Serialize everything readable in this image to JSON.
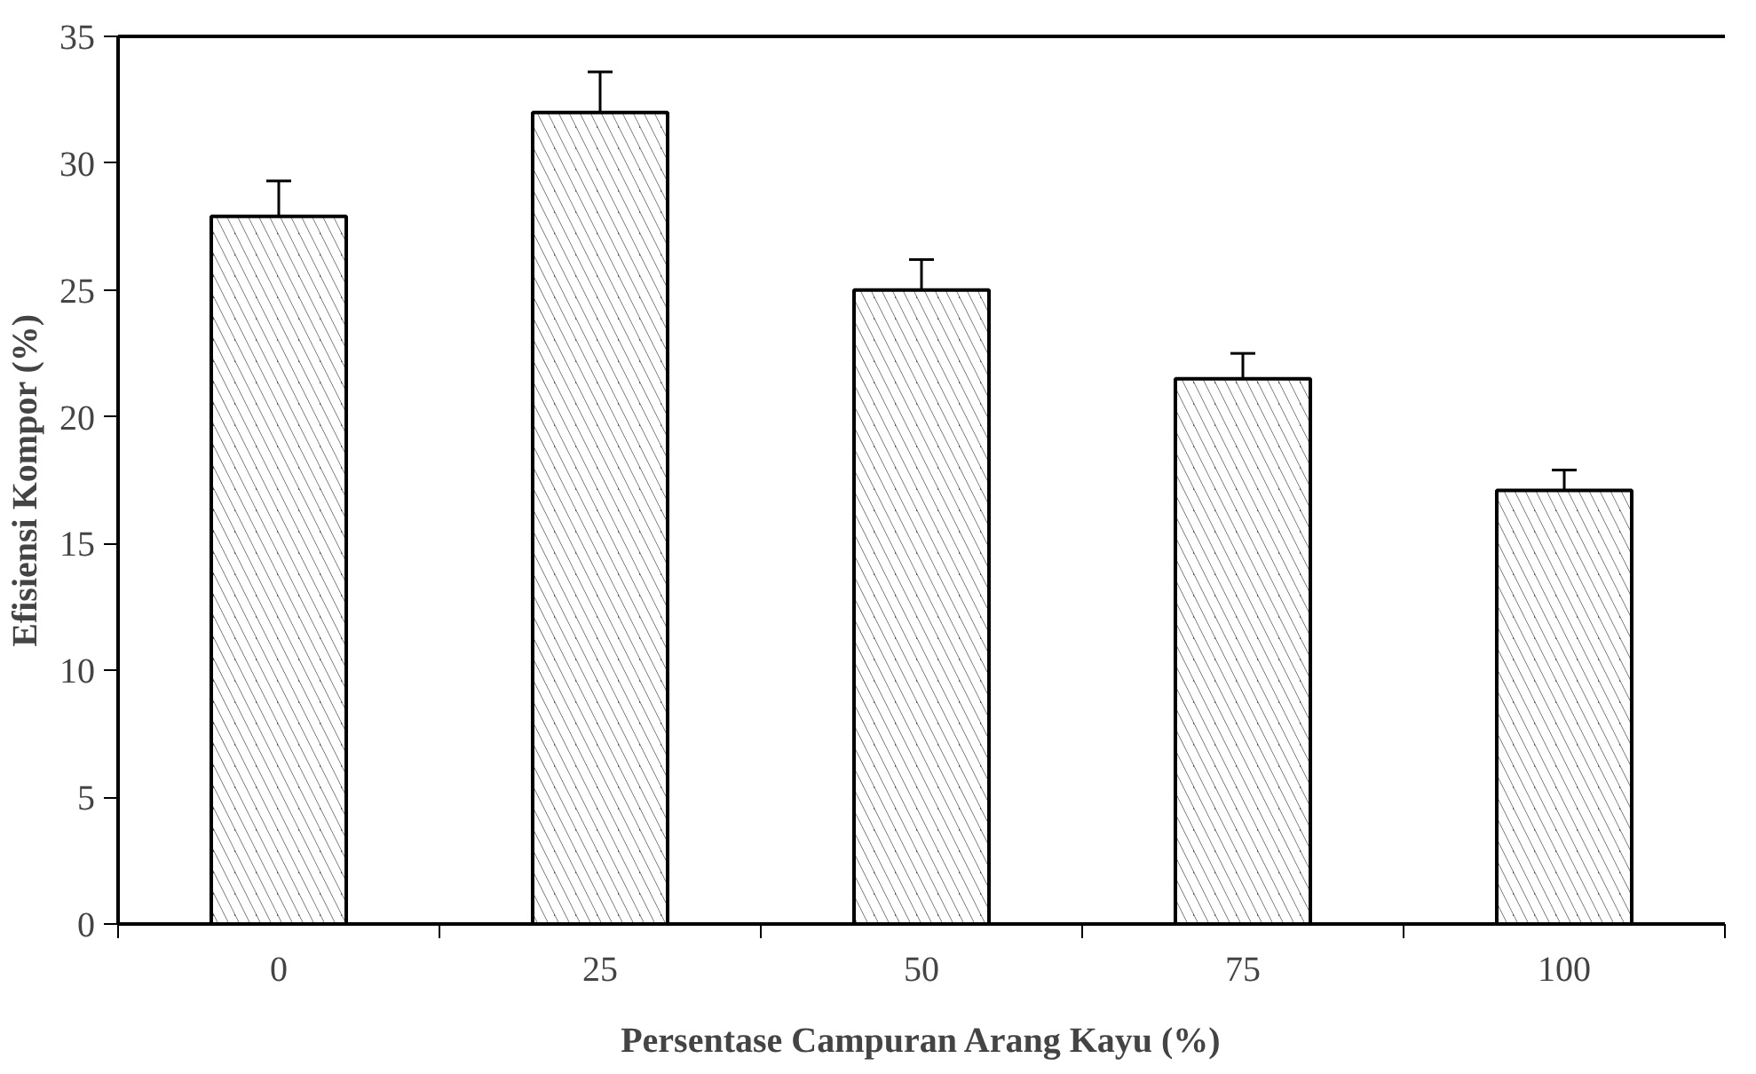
{
  "chart_data": {
    "type": "bar",
    "xlabel": "Persentase Campuran Arang Kayu (%)",
    "ylabel": "Efisiensi Kompor (%)",
    "categories": [
      "0",
      "25",
      "50",
      "75",
      "100"
    ],
    "values": [
      27.9,
      32.0,
      25.0,
      21.5,
      17.1
    ],
    "errors": [
      1.4,
      1.6,
      1.2,
      1.0,
      0.8
    ],
    "color": "#595959",
    "ylim": [
      0,
      35
    ],
    "yticks": [
      0,
      5,
      10,
      15,
      20,
      25,
      30,
      35
    ],
    "grid": false
  }
}
